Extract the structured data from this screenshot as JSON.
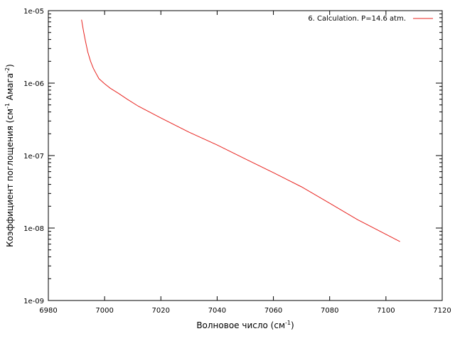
{
  "chart_data": {
    "type": "line",
    "title": "",
    "xlabel": "Волновое число (см",
    "xlabel_sup": "-1",
    "xlabel_end": ")",
    "ylabel": "Коэффициент поглощения (см",
    "ylabel_sup1": "-1",
    "ylabel_mid": " Амага",
    "ylabel_sup2": "-2",
    "ylabel_end": ")",
    "xlim": [
      6980,
      7120
    ],
    "ylim": [
      1e-09,
      1e-05
    ],
    "yscale": "log",
    "x_ticks": [
      6980,
      7000,
      7020,
      7040,
      7060,
      7080,
      7100,
      7120
    ],
    "x_tick_labels": [
      "6980",
      "7000",
      "7020",
      "7040",
      "7060",
      "7080",
      "7100",
      "7120"
    ],
    "y_ticks": [
      1e-09,
      1e-08,
      1e-07,
      1e-06,
      1e-05
    ],
    "y_tick_labels": [
      "1e-09",
      "1e-08",
      "1e-07",
      "1e-06",
      "1e-05"
    ],
    "grid": false,
    "legend_position": "top-right",
    "series": [
      {
        "name": "6. Calculation. P=14.6 atm.",
        "color": "#e8231f",
        "x": [
          6991.8,
          6992.5,
          6993.2,
          6994,
          6995,
          6996,
          6997,
          6998,
          7000,
          7002,
          7005,
          7008,
          7012,
          7020,
          7030,
          7040,
          7050,
          7060,
          7070,
          7080,
          7090,
          7105
        ],
        "y": [
          7.5e-06,
          5.2e-06,
          3.8e-06,
          2.7e-06,
          2e-06,
          1.6e-06,
          1.35e-06,
          1.15e-06,
          9.8e-07,
          8.5e-07,
          7.2e-07,
          6e-07,
          4.8e-07,
          3.3e-07,
          2.1e-07,
          1.4e-07,
          9e-08,
          5.8e-08,
          3.7e-08,
          2.2e-08,
          1.3e-08,
          6.5e-09
        ]
      }
    ]
  }
}
